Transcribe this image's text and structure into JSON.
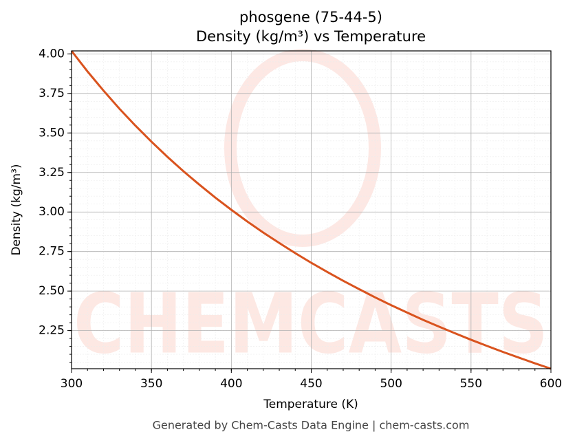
{
  "chart_data": {
    "type": "line",
    "title": "phosgene (75-44-5)",
    "subtitle": "Density (kg/m³) vs Temperature",
    "x_label": "Temperature (K)",
    "y_label": "Density (kg/m³)",
    "footer": "Generated by Chem-Casts Data Engine | chem-casts.com",
    "watermark": "CHEMCASTS",
    "x": [
      300,
      310,
      320,
      330,
      340,
      350,
      360,
      370,
      380,
      390,
      400,
      410,
      420,
      430,
      440,
      450,
      460,
      470,
      480,
      490,
      500,
      510,
      520,
      530,
      540,
      550,
      560,
      570,
      580,
      590,
      600
    ],
    "series": [
      {
        "name": "Density",
        "color": "#d9531e",
        "values": [
          4.019,
          3.889,
          3.768,
          3.653,
          3.546,
          3.445,
          3.349,
          3.258,
          3.173,
          3.091,
          3.014,
          2.94,
          2.87,
          2.804,
          2.74,
          2.679,
          2.621,
          2.565,
          2.512,
          2.46,
          2.411,
          2.364,
          2.318,
          2.275,
          2.233,
          2.192,
          2.153,
          2.115,
          2.079,
          2.043,
          2.009
        ]
      }
    ],
    "xlim": [
      300,
      600
    ],
    "xticks": [
      300,
      350,
      400,
      450,
      500,
      550,
      600
    ],
    "ylim": [
      2.009,
      4.019
    ],
    "yticks": [
      2.25,
      {
        "value": 2.5,
        "label": "2.50"
      },
      2.75,
      {
        "value": 3,
        "label": "3.00"
      },
      3.25,
      {
        "value": 3.5,
        "label": "3.50"
      },
      3.75,
      {
        "value": 4,
        "label": "4.00"
      }
    ],
    "grid": true
  }
}
